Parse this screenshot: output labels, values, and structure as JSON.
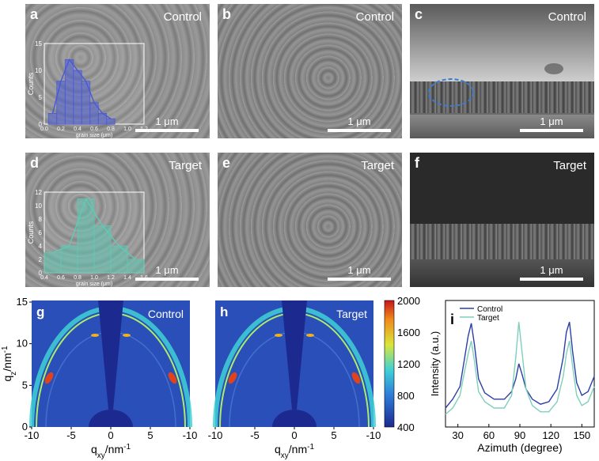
{
  "panels": {
    "a": {
      "label": "a",
      "condition": "Control",
      "scale": "1 μm"
    },
    "b": {
      "label": "b",
      "condition": "Control",
      "scale": "1 μm"
    },
    "c": {
      "label": "c",
      "condition": "Control",
      "scale": "1 μm"
    },
    "d": {
      "label": "d",
      "condition": "Target",
      "scale": "1 μm"
    },
    "e": {
      "label": "e",
      "condition": "Target",
      "scale": "1 μm"
    },
    "f": {
      "label": "f",
      "condition": "Target",
      "scale": "1 μm"
    },
    "g": {
      "label": "g",
      "condition": "Control"
    },
    "h": {
      "label": "h",
      "condition": "Target"
    },
    "i": {
      "label": "i"
    }
  },
  "chart_data": [
    {
      "type": "bar",
      "panel": "a",
      "xlabel": "grain size (μm)",
      "ylabel": "Counts",
      "xticks": [
        "0.0",
        "0.2",
        "0.4",
        "0.6",
        "0.8",
        "1.0",
        "1.2"
      ],
      "yticks": [
        "0",
        "5",
        "10",
        "15"
      ],
      "xlim": [
        0,
        1.2
      ],
      "ylim": [
        0,
        15
      ],
      "bins": [
        0.1,
        0.2,
        0.3,
        0.4,
        0.5,
        0.6,
        0.7,
        0.8
      ],
      "values": [
        2,
        8,
        12,
        10,
        8,
        4,
        2,
        1
      ],
      "color": "#4a5bd6"
    },
    {
      "type": "bar",
      "panel": "d",
      "xlabel": "grain size (μm)",
      "ylabel": "Counts",
      "xticks": [
        "0.4",
        "0.6",
        "0.8",
        "1.0",
        "1.2",
        "1.4",
        "1.6"
      ],
      "yticks": [
        "0",
        "2",
        "4",
        "6",
        "8",
        "10",
        "12"
      ],
      "xlim": [
        0.4,
        1.6
      ],
      "ylim": [
        0,
        12
      ],
      "bins": [
        0.5,
        0.7,
        0.9,
        1.1,
        1.3,
        1.5
      ],
      "values": [
        3,
        4,
        11,
        7,
        4,
        2
      ],
      "color": "#5fc9b3"
    },
    {
      "type": "heatmap",
      "panels": [
        "g",
        "h"
      ],
      "xlabel": "q",
      "xlabel_sub": "xy",
      "xlabel_unit": "/nm",
      "xlabel_sup": "-1",
      "ylabel": "q",
      "ylabel_sub": "z",
      "ylabel_unit": "/nm",
      "ylabel_sup": "-1",
      "xticks": [
        "-10",
        "-5",
        "0",
        "5",
        "-10"
      ],
      "yticks": [
        "0",
        "5",
        "10",
        "15"
      ],
      "colorbar_ticks": [
        "400",
        "800",
        "1200",
        "1600",
        "2000"
      ],
      "colorbar_range": [
        400,
        2000
      ]
    },
    {
      "type": "line",
      "panel": "i",
      "xlabel": "Azimuth (degree)",
      "ylabel": "Intensity (a.u.)",
      "xticks": [
        "30",
        "60",
        "90",
        "120",
        "150"
      ],
      "xlim": [
        18,
        162
      ],
      "ylim": [
        0,
        1
      ],
      "series": [
        {
          "name": "Control",
          "color": "#2b3ea8",
          "x": [
            18,
            25,
            32,
            36,
            40,
            43,
            46,
            50,
            56,
            65,
            75,
            82,
            86,
            89,
            92,
            96,
            102,
            110,
            118,
            126,
            132,
            135,
            138,
            141,
            145,
            150,
            156,
            162
          ],
          "y": [
            0.15,
            0.22,
            0.32,
            0.52,
            0.72,
            0.82,
            0.65,
            0.38,
            0.27,
            0.22,
            0.22,
            0.28,
            0.38,
            0.5,
            0.42,
            0.3,
            0.22,
            0.18,
            0.2,
            0.3,
            0.55,
            0.75,
            0.83,
            0.6,
            0.35,
            0.25,
            0.28,
            0.4
          ]
        },
        {
          "name": "Target",
          "color": "#7fcfbd",
          "x": [
            18,
            25,
            32,
            36,
            40,
            43,
            46,
            50,
            56,
            65,
            75,
            82,
            86,
            89,
            92,
            96,
            102,
            110,
            118,
            126,
            132,
            135,
            138,
            141,
            145,
            150,
            156,
            162
          ],
          "y": [
            0.1,
            0.15,
            0.25,
            0.42,
            0.58,
            0.68,
            0.52,
            0.28,
            0.2,
            0.15,
            0.15,
            0.25,
            0.55,
            0.83,
            0.6,
            0.3,
            0.17,
            0.12,
            0.12,
            0.2,
            0.4,
            0.58,
            0.68,
            0.48,
            0.25,
            0.17,
            0.2,
            0.32
          ]
        }
      ]
    }
  ]
}
